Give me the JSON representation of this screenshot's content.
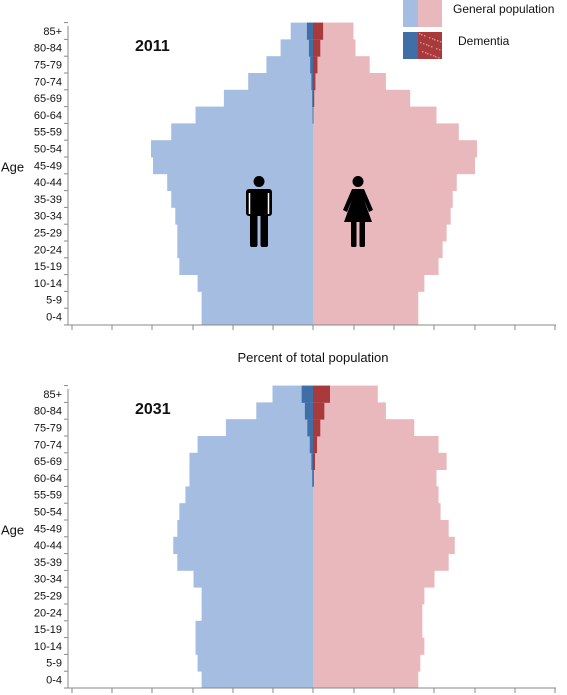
{
  "chart_data": {
    "type": "bar",
    "orientation": "horizontal",
    "xlabel": "Percent of total population",
    "ylabel": "Age",
    "categories": [
      "0-4",
      "5-9",
      "10-14",
      "15-19",
      "20-24",
      "25-29",
      "30-34",
      "35-39",
      "40-44",
      "45-49",
      "50-54",
      "55-59",
      "60-64",
      "65-69",
      "70-74",
      "75-79",
      "80-84",
      "85+"
    ],
    "legend": [
      {
        "name": "General population",
        "color": "#e9b8bd",
        "color_male": "#a4bde0"
      },
      {
        "name": "Dementia",
        "color": "#a83a3c",
        "color_male": "#3f6fa6"
      }
    ],
    "panels": [
      {
        "year": "2011",
        "series": [
          {
            "name": "General population",
            "side": "male",
            "values": [
              2.75,
              2.75,
              2.85,
              3.3,
              3.35,
              3.35,
              3.4,
              3.5,
              3.6,
              3.95,
              4.0,
              3.5,
              2.9,
              2.2,
              1.6,
              1.15,
              0.8,
              0.55
            ]
          },
          {
            "name": "General population",
            "side": "female",
            "values": [
              2.6,
              2.6,
              2.75,
              3.1,
              3.2,
              3.3,
              3.4,
              3.45,
              3.55,
              4.0,
              4.05,
              3.6,
              3.05,
              2.4,
              1.8,
              1.4,
              1.05,
              1.0
            ]
          },
          {
            "name": "Dementia",
            "side": "male",
            "values": [
              0,
              0,
              0,
              0,
              0,
              0,
              0,
              0,
              0,
              0,
              0,
              0,
              0.01,
              0.02,
              0.04,
              0.07,
              0.1,
              0.15
            ]
          },
          {
            "name": "Dementia",
            "side": "female",
            "values": [
              0,
              0,
              0,
              0,
              0,
              0,
              0,
              0,
              0,
              0,
              0,
              0,
              0.01,
              0.03,
              0.06,
              0.11,
              0.18,
              0.25
            ]
          }
        ]
      },
      {
        "year": "2031",
        "series": [
          {
            "name": "General population",
            "side": "male",
            "values": [
              2.75,
              2.85,
              2.9,
              2.9,
              2.75,
              2.75,
              2.95,
              3.35,
              3.45,
              3.35,
              3.3,
              3.15,
              3.05,
              3.05,
              2.85,
              2.15,
              1.4,
              1.0
            ]
          },
          {
            "name": "General population",
            "side": "female",
            "values": [
              2.6,
              2.65,
              2.75,
              2.7,
              2.7,
              2.75,
              3.0,
              3.35,
              3.5,
              3.35,
              3.15,
              3.1,
              3.05,
              3.3,
              3.1,
              2.5,
              1.8,
              1.6
            ]
          },
          {
            "name": "Dementia",
            "side": "male",
            "values": [
              0,
              0,
              0,
              0,
              0,
              0,
              0,
              0,
              0,
              0,
              0,
              0,
              0.02,
              0.04,
              0.08,
              0.14,
              0.2,
              0.28
            ]
          },
          {
            "name": "Dementia",
            "side": "female",
            "values": [
              0,
              0,
              0,
              0,
              0,
              0,
              0,
              0,
              0,
              0,
              0,
              0,
              0.02,
              0.05,
              0.1,
              0.18,
              0.28,
              0.42
            ]
          }
        ]
      }
    ]
  }
}
